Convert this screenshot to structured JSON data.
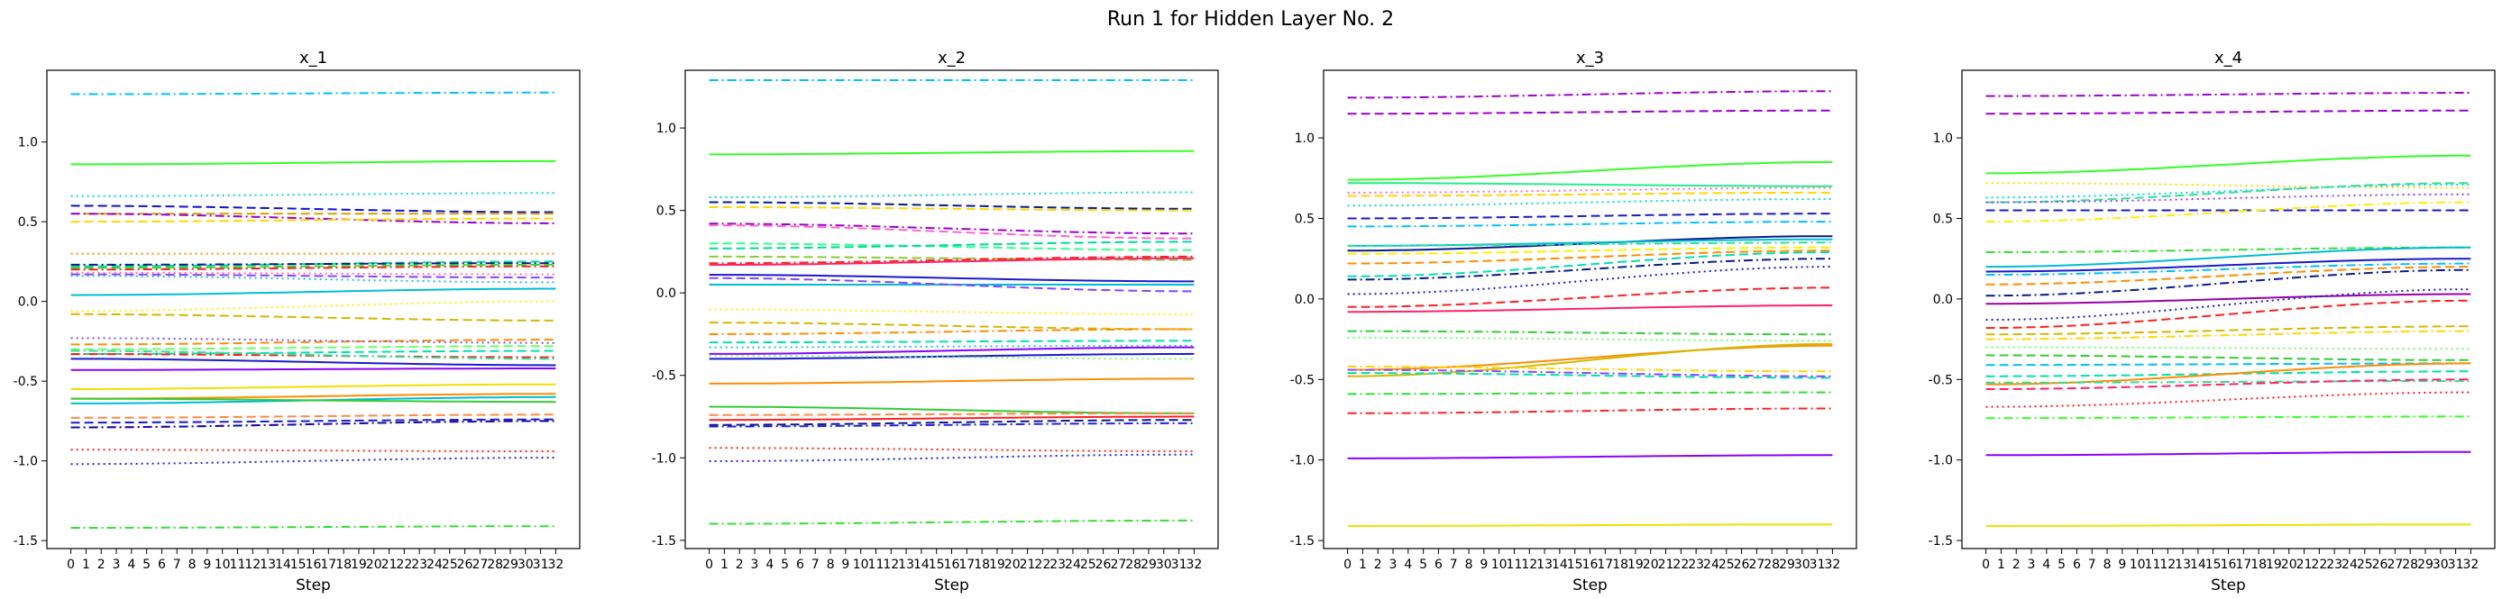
{
  "figure": {
    "suptitle": "Run 1 for Hidden Layer No. 2"
  },
  "chart_data": [
    {
      "type": "line",
      "title": "x_1",
      "xlabel": "Step",
      "ylabel": "",
      "xlim": [
        0,
        32
      ],
      "ylim": [
        -1.55,
        1.45
      ],
      "yticks": [
        1.0,
        0.5,
        0.0,
        -0.5,
        -1.0,
        -1.5
      ],
      "x": [
        0,
        1,
        2,
        3,
        4,
        5,
        6,
        7,
        8,
        9,
        10,
        11,
        12,
        13,
        14,
        15,
        16,
        17,
        18,
        19,
        20,
        21,
        22,
        23,
        24,
        25,
        26,
        27,
        28,
        29,
        30,
        31,
        32
      ],
      "grid": false,
      "series": [
        {
          "color": "#00bfff",
          "dash": "dashdot",
          "start": 1.3,
          "end": 1.31
        },
        {
          "color": "#33ff22",
          "dash": "solid",
          "start": 0.86,
          "end": 0.88
        },
        {
          "color": "#00d8d8",
          "dash": "dotted",
          "start": 0.66,
          "end": 0.68
        },
        {
          "color": "#1010d0",
          "dash": "dashed",
          "start": 0.6,
          "end": 0.56
        },
        {
          "color": "#d4a000",
          "dash": "dashed",
          "start": 0.55,
          "end": 0.55
        },
        {
          "color": "#9900cc",
          "dash": "dashdot",
          "start": 0.55,
          "end": 0.49
        },
        {
          "color": "#ffd700",
          "dash": "dashed",
          "start": 0.5,
          "end": 0.52
        },
        {
          "color": "#ff8c00",
          "dash": "dotted",
          "start": 0.3,
          "end": 0.3
        },
        {
          "color": "#00d8a0",
          "dash": "dashed",
          "start": 0.22,
          "end": 0.25
        },
        {
          "color": "#0a1a8a",
          "dash": "dashdot",
          "start": 0.23,
          "end": 0.24
        },
        {
          "color": "#33dd33",
          "dash": "dashed",
          "start": 0.21,
          "end": 0.23
        },
        {
          "color": "#ff2020",
          "dash": "dashdot",
          "start": 0.2,
          "end": 0.22
        },
        {
          "color": "#8844ff",
          "dash": "dashed",
          "start": 0.17,
          "end": 0.15
        },
        {
          "color": "#22bbff",
          "dash": "dotted",
          "start": 0.16,
          "end": 0.12
        },
        {
          "color": "#ff66cc",
          "dash": "dotted",
          "start": 0.18,
          "end": 0.17
        },
        {
          "color": "#00bcd4",
          "dash": "solid",
          "start": 0.04,
          "end": 0.08
        },
        {
          "color": "#ffee00",
          "dash": "dotted",
          "start": -0.06,
          "end": 0.0
        },
        {
          "color": "#d4b800",
          "dash": "dashed",
          "start": -0.08,
          "end": -0.12
        },
        {
          "color": "#ff8c00",
          "dash": "dashed",
          "start": -0.27,
          "end": -0.24
        },
        {
          "color": "#7755ee",
          "dash": "dotted",
          "start": -0.23,
          "end": -0.26
        },
        {
          "color": "#66ff66",
          "dash": "dashed",
          "start": -0.3,
          "end": -0.28
        },
        {
          "color": "#00e0b0",
          "dash": "dashed",
          "start": -0.33,
          "end": -0.31
        },
        {
          "color": "#ff1a1a",
          "dash": "dashdot",
          "start": -0.33,
          "end": -0.35
        },
        {
          "color": "#33dd99",
          "dash": "dashdot",
          "start": -0.31,
          "end": -0.36
        },
        {
          "color": "#1a1acc",
          "dash": "solid",
          "start": -0.36,
          "end": -0.4
        },
        {
          "color": "#8800ff",
          "dash": "solid",
          "start": -0.43,
          "end": -0.42
        },
        {
          "color": "#f0e000",
          "dash": "solid",
          "start": -0.55,
          "end": -0.52
        },
        {
          "color": "#ff8c00",
          "dash": "solid",
          "start": -0.61,
          "end": -0.58
        },
        {
          "color": "#00bcd4",
          "dash": "solid",
          "start": -0.64,
          "end": -0.6
        },
        {
          "color": "#33cc33",
          "dash": "solid",
          "start": -0.61,
          "end": -0.63
        },
        {
          "color": "#ff8844",
          "dash": "dashed",
          "start": -0.73,
          "end": -0.71
        },
        {
          "color": "#1a1acc",
          "dash": "dashed",
          "start": -0.76,
          "end": -0.74
        },
        {
          "color": "#ff2266",
          "dash": "dashdot",
          "start": -0.79,
          "end": -0.75
        },
        {
          "color": "#1010aa",
          "dash": "dashdot",
          "start": -0.79,
          "end": -0.75
        },
        {
          "color": "#ff2020",
          "dash": "dotted",
          "start": -0.93,
          "end": -0.94
        },
        {
          "color": "#2222dd",
          "dash": "dotted",
          "start": -1.02,
          "end": -0.98
        },
        {
          "color": "#33dd33",
          "dash": "dashdot",
          "start": -1.42,
          "end": -1.41
        }
      ]
    },
    {
      "type": "line",
      "title": "x_2",
      "xlabel": "Step",
      "ylabel": "",
      "xlim": [
        0,
        32
      ],
      "ylim": [
        -1.55,
        1.35
      ],
      "yticks": [
        1.0,
        0.5,
        0.0,
        -0.5,
        -1.0,
        -1.5
      ],
      "x": [
        0,
        1,
        2,
        3,
        4,
        5,
        6,
        7,
        8,
        9,
        10,
        11,
        12,
        13,
        14,
        15,
        16,
        17,
        18,
        19,
        20,
        21,
        22,
        23,
        24,
        25,
        26,
        27,
        28,
        29,
        30,
        31,
        32
      ],
      "grid": false,
      "series": [
        {
          "color": "#00bfff",
          "dash": "dashdot",
          "start": 1.29,
          "end": 1.29
        },
        {
          "color": "#33ff22",
          "dash": "solid",
          "start": 0.84,
          "end": 0.86
        },
        {
          "color": "#00d8d8",
          "dash": "dotted",
          "start": 0.58,
          "end": 0.61
        },
        {
          "color": "#0a1a8a",
          "dash": "dashed",
          "start": 0.55,
          "end": 0.51
        },
        {
          "color": "#ffd700",
          "dash": "dashed",
          "start": 0.52,
          "end": 0.5
        },
        {
          "color": "#9900cc",
          "dash": "dashdot",
          "start": 0.42,
          "end": 0.36
        },
        {
          "color": "#ff66cc",
          "dash": "dashed",
          "start": 0.41,
          "end": 0.33
        },
        {
          "color": "#33ff88",
          "dash": "dashed",
          "start": 0.3,
          "end": 0.26
        },
        {
          "color": "#00d8a0",
          "dash": "dashed",
          "start": 0.27,
          "end": 0.31
        },
        {
          "color": "#88cc33",
          "dash": "dashed",
          "start": 0.22,
          "end": 0.2
        },
        {
          "color": "#ff2020",
          "dash": "dashdot",
          "start": 0.18,
          "end": 0.22
        },
        {
          "color": "#ff2266",
          "dash": "solid",
          "start": 0.17,
          "end": 0.21
        },
        {
          "color": "#1a1acc",
          "dash": "solid",
          "start": 0.11,
          "end": 0.07
        },
        {
          "color": "#00bcd4",
          "dash": "solid",
          "start": 0.05,
          "end": 0.05
        },
        {
          "color": "#8844ff",
          "dash": "dashed",
          "start": 0.09,
          "end": 0.01
        },
        {
          "color": "#ffee00",
          "dash": "dotted",
          "start": -0.1,
          "end": -0.13
        },
        {
          "color": "#d4b800",
          "dash": "dashed",
          "start": -0.18,
          "end": -0.22
        },
        {
          "color": "#ff8c00",
          "dash": "dashdot",
          "start": -0.25,
          "end": -0.22
        },
        {
          "color": "#00e0b0",
          "dash": "dashed",
          "start": -0.3,
          "end": -0.29
        },
        {
          "color": "#22bbff",
          "dash": "dotted",
          "start": -0.33,
          "end": -0.32
        },
        {
          "color": "#8800ff",
          "dash": "solid",
          "start": -0.37,
          "end": -0.33
        },
        {
          "color": "#1a1acc",
          "dash": "solid",
          "start": -0.4,
          "end": -0.37
        },
        {
          "color": "#66ff66",
          "dash": "dotted",
          "start": -0.38,
          "end": -0.4
        },
        {
          "color": "#ff8c00",
          "dash": "solid",
          "start": -0.55,
          "end": -0.52
        },
        {
          "color": "#33cc33",
          "dash": "solid",
          "start": -0.69,
          "end": -0.73
        },
        {
          "color": "#ff8844",
          "dash": "dashed",
          "start": -0.74,
          "end": -0.73
        },
        {
          "color": "#ff2020",
          "dash": "solid",
          "start": -0.77,
          "end": -0.75
        },
        {
          "color": "#0a1a8a",
          "dash": "dashed",
          "start": -0.8,
          "end": -0.77
        },
        {
          "color": "#2222dd",
          "dash": "dashdot",
          "start": -0.81,
          "end": -0.79
        },
        {
          "color": "#ff2020",
          "dash": "dotted",
          "start": -0.94,
          "end": -0.96
        },
        {
          "color": "#2222dd",
          "dash": "dotted",
          "start": -1.02,
          "end": -0.98
        },
        {
          "color": "#33dd33",
          "dash": "dashdot",
          "start": -1.4,
          "end": -1.38
        }
      ]
    },
    {
      "type": "line",
      "title": "x_3",
      "xlabel": "Step",
      "ylabel": "",
      "xlim": [
        0,
        32
      ],
      "ylim": [
        -1.55,
        1.42
      ],
      "yticks": [
        1.0,
        0.5,
        0.0,
        -0.5,
        -1.0,
        -1.5
      ],
      "x": [
        0,
        1,
        2,
        3,
        4,
        5,
        6,
        7,
        8,
        9,
        10,
        11,
        12,
        13,
        14,
        15,
        16,
        17,
        18,
        19,
        20,
        21,
        22,
        23,
        24,
        25,
        26,
        27,
        28,
        29,
        30,
        31,
        32
      ],
      "grid": false,
      "series": [
        {
          "color": "#9900cc",
          "dash": "dashdot",
          "start": 1.25,
          "end": 1.29
        },
        {
          "color": "#9900cc",
          "dash": "dashed",
          "start": 1.15,
          "end": 1.17
        },
        {
          "color": "#33ff22",
          "dash": "solid",
          "start": 0.74,
          "end": 0.85
        },
        {
          "color": "#22ee88",
          "dash": "solid",
          "start": 0.72,
          "end": 0.7
        },
        {
          "color": "#ff66cc",
          "dash": "dotted",
          "start": 0.66,
          "end": 0.69
        },
        {
          "color": "#ffd700",
          "dash": "dashed",
          "start": 0.64,
          "end": 0.66
        },
        {
          "color": "#00d8d8",
          "dash": "dotted",
          "start": 0.58,
          "end": 0.62
        },
        {
          "color": "#1a1acc",
          "dash": "dashed",
          "start": 0.5,
          "end": 0.53
        },
        {
          "color": "#00bfff",
          "dash": "dashdot",
          "start": 0.45,
          "end": 0.48
        },
        {
          "color": "#0a1a8a",
          "dash": "solid",
          "start": 0.3,
          "end": 0.39
        },
        {
          "color": "#00bcd4",
          "dash": "solid",
          "start": 0.33,
          "end": 0.37
        },
        {
          "color": "#33dd99",
          "dash": "dashdot",
          "start": 0.33,
          "end": 0.35
        },
        {
          "color": "#ffee00",
          "dash": "dashed",
          "start": 0.28,
          "end": 0.32
        },
        {
          "color": "#ff8c00",
          "dash": "dashed",
          "start": 0.22,
          "end": 0.3
        },
        {
          "color": "#0a1a8a",
          "dash": "dashdot",
          "start": 0.12,
          "end": 0.25
        },
        {
          "color": "#1a1acc",
          "dash": "dotted",
          "start": 0.03,
          "end": 0.2
        },
        {
          "color": "#00e0b0",
          "dash": "dashed",
          "start": 0.14,
          "end": 0.29
        },
        {
          "color": "#ff2020",
          "dash": "dashed",
          "start": -0.05,
          "end": 0.07
        },
        {
          "color": "#ff2266",
          "dash": "solid",
          "start": -0.08,
          "end": -0.04
        },
        {
          "color": "#33cc33",
          "dash": "dashdot",
          "start": -0.2,
          "end": -0.22
        },
        {
          "color": "#66ff66",
          "dash": "dotted",
          "start": -0.24,
          "end": -0.26
        },
        {
          "color": "#ff8c00",
          "dash": "solid",
          "start": -0.44,
          "end": -0.29
        },
        {
          "color": "#d4b800",
          "dash": "solid",
          "start": -0.48,
          "end": -0.28
        },
        {
          "color": "#00e0b0",
          "dash": "dashed",
          "start": -0.46,
          "end": -0.49
        },
        {
          "color": "#8844ff",
          "dash": "dashdot",
          "start": -0.44,
          "end": -0.48
        },
        {
          "color": "#ffd700",
          "dash": "dashdot",
          "start": -0.42,
          "end": -0.45
        },
        {
          "color": "#33dd33",
          "dash": "dashdot",
          "start": -0.59,
          "end": -0.58
        },
        {
          "color": "#ff2020",
          "dash": "dashdot",
          "start": -0.71,
          "end": -0.68
        },
        {
          "color": "#8800ff",
          "dash": "solid",
          "start": -0.99,
          "end": -0.97
        },
        {
          "color": "#f0e000",
          "dash": "solid",
          "start": -1.41,
          "end": -1.4
        }
      ]
    },
    {
      "type": "line",
      "title": "x_4",
      "xlabel": "Step",
      "ylabel": "",
      "xlim": [
        0,
        32
      ],
      "ylim": [
        -1.55,
        1.42
      ],
      "yticks": [
        1.0,
        0.5,
        0.0,
        -0.5,
        -1.0,
        -1.5
      ],
      "x": [
        0,
        1,
        2,
        3,
        4,
        5,
        6,
        7,
        8,
        9,
        10,
        11,
        12,
        13,
        14,
        15,
        16,
        17,
        18,
        19,
        20,
        21,
        22,
        23,
        24,
        25,
        26,
        27,
        28,
        29,
        30,
        31,
        32
      ],
      "grid": false,
      "series": [
        {
          "color": "#9900cc",
          "dash": "dashdot",
          "start": 1.26,
          "end": 1.28
        },
        {
          "color": "#9900cc",
          "dash": "dashed",
          "start": 1.15,
          "end": 1.17
        },
        {
          "color": "#33ff22",
          "dash": "solid",
          "start": 0.78,
          "end": 0.89
        },
        {
          "color": "#ffd700",
          "dash": "dotted",
          "start": 0.72,
          "end": 0.69
        },
        {
          "color": "#00d8d8",
          "dash": "dotted",
          "start": 0.63,
          "end": 0.71
        },
        {
          "color": "#33dd99",
          "dash": "dashed",
          "start": 0.6,
          "end": 0.72
        },
        {
          "color": "#8844ff",
          "dash": "dotted",
          "start": 0.6,
          "end": 0.65
        },
        {
          "color": "#1a1acc",
          "dash": "dashed",
          "start": 0.55,
          "end": 0.55
        },
        {
          "color": "#ffee00",
          "dash": "dashdot",
          "start": 0.48,
          "end": 0.6
        },
        {
          "color": "#33dd33",
          "dash": "dashdot",
          "start": 0.29,
          "end": 0.32
        },
        {
          "color": "#00bcd4",
          "dash": "solid",
          "start": 0.2,
          "end": 0.32
        },
        {
          "color": "#1a1acc",
          "dash": "solid",
          "start": 0.17,
          "end": 0.25
        },
        {
          "color": "#00bfff",
          "dash": "dashdot",
          "start": 0.15,
          "end": 0.22
        },
        {
          "color": "#ff8c00",
          "dash": "dashed",
          "start": 0.09,
          "end": 0.2
        },
        {
          "color": "#0a1a8a",
          "dash": "dashdot",
          "start": 0.02,
          "end": 0.18
        },
        {
          "color": "#9900aa",
          "dash": "solid",
          "start": -0.03,
          "end": 0.03
        },
        {
          "color": "#1a1acc",
          "dash": "dotted",
          "start": -0.13,
          "end": 0.06
        },
        {
          "color": "#ff2020",
          "dash": "dashed",
          "start": -0.18,
          "end": -0.01
        },
        {
          "color": "#d4b800",
          "dash": "dashed",
          "start": -0.22,
          "end": -0.17
        },
        {
          "color": "#ffd700",
          "dash": "dashdot",
          "start": -0.25,
          "end": -0.2
        },
        {
          "color": "#66ff66",
          "dash": "dotted",
          "start": -0.3,
          "end": -0.31
        },
        {
          "color": "#33cc33",
          "dash": "dashed",
          "start": -0.35,
          "end": -0.38
        },
        {
          "color": "#00bfff",
          "dash": "dashed",
          "start": -0.41,
          "end": -0.4
        },
        {
          "color": "#00e0b0",
          "dash": "dashed",
          "start": -0.48,
          "end": -0.45
        },
        {
          "color": "#ff8c00",
          "dash": "solid",
          "start": -0.53,
          "end": -0.4
        },
        {
          "color": "#33dd99",
          "dash": "dashdot",
          "start": -0.52,
          "end": -0.51
        },
        {
          "color": "#ff2266",
          "dash": "dashed",
          "start": -0.56,
          "end": -0.5
        },
        {
          "color": "#ff1a1a",
          "dash": "dotted",
          "start": -0.67,
          "end": -0.58
        },
        {
          "color": "#33ff22",
          "dash": "dashdot",
          "start": -0.74,
          "end": -0.73
        },
        {
          "color": "#8800ff",
          "dash": "solid",
          "start": -0.97,
          "end": -0.95
        },
        {
          "color": "#f0e000",
          "dash": "solid",
          "start": -1.41,
          "end": -1.4
        }
      ]
    }
  ]
}
